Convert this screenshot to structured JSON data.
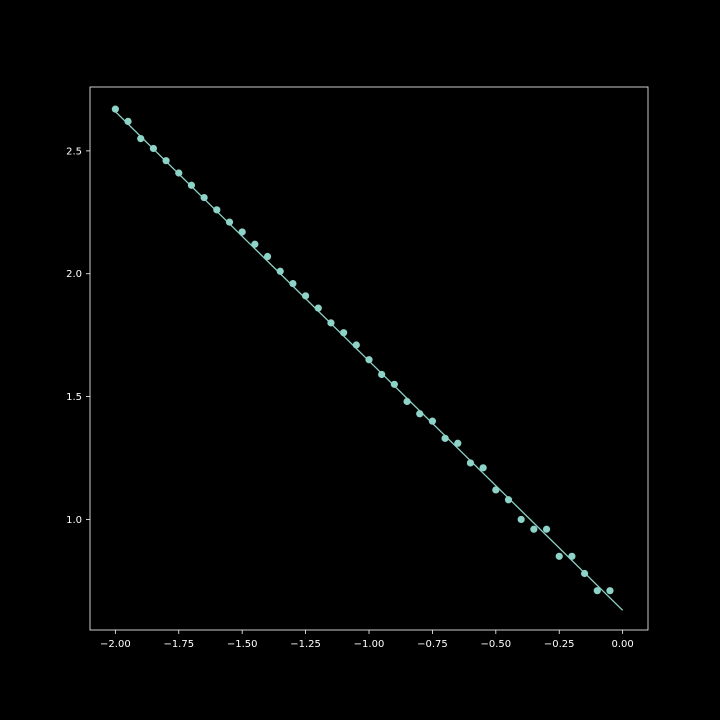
{
  "chart_data": {
    "type": "scatter",
    "title": "",
    "xlabel": "",
    "ylabel": "",
    "xlim": [
      -2.1,
      0.1
    ],
    "ylim": [
      0.55,
      2.76
    ],
    "grid": false,
    "x_ticks": [
      {
        "value": -2.0,
        "label": "−2.00"
      },
      {
        "value": -1.75,
        "label": "−1.75"
      },
      {
        "value": -1.5,
        "label": "−1.50"
      },
      {
        "value": -1.25,
        "label": "−1.25"
      },
      {
        "value": -1.0,
        "label": "−1.00"
      },
      {
        "value": -0.75,
        "label": "−0.75"
      },
      {
        "value": -0.5,
        "label": "−0.50"
      },
      {
        "value": -0.25,
        "label": "−0.25"
      },
      {
        "value": 0.0,
        "label": "0.00"
      }
    ],
    "y_ticks": [
      {
        "value": 1.0,
        "label": "1.0"
      },
      {
        "value": 1.5,
        "label": "1.5"
      },
      {
        "value": 2.0,
        "label": "2.0"
      },
      {
        "value": 2.5,
        "label": "2.5"
      }
    ],
    "points": {
      "x": [
        -2.0,
        -1.95,
        -1.9,
        -1.85,
        -1.8,
        -1.75,
        -1.7,
        -1.65,
        -1.6,
        -1.55,
        -1.5,
        -1.45,
        -1.4,
        -1.35,
        -1.3,
        -1.25,
        -1.2,
        -1.15,
        -1.1,
        -1.05,
        -1.0,
        -0.95,
        -0.9,
        -0.85,
        -0.8,
        -0.75,
        -0.7,
        -0.65,
        -0.6,
        -0.55,
        -0.5,
        -0.45,
        -0.4,
        -0.35,
        -0.3,
        -0.25,
        -0.2,
        -0.15,
        -0.1,
        -0.05
      ],
      "y": [
        2.67,
        2.62,
        2.55,
        2.51,
        2.46,
        2.41,
        2.36,
        2.31,
        2.26,
        2.21,
        2.17,
        2.12,
        2.07,
        2.01,
        1.96,
        1.91,
        1.86,
        1.8,
        1.76,
        1.71,
        1.65,
        1.59,
        1.55,
        1.48,
        1.43,
        1.4,
        1.33,
        1.31,
        1.23,
        1.21,
        1.12,
        1.08,
        1.0,
        0.96,
        0.96,
        0.85,
        0.85,
        0.78,
        0.71,
        0.71
      ]
    },
    "fit_line": {
      "x": [
        -2.0,
        0.0
      ],
      "y": [
        2.66,
        0.63
      ]
    },
    "colors": {
      "background": "#000000",
      "axes": "#ffffff",
      "series": "#8dd3c7"
    }
  }
}
